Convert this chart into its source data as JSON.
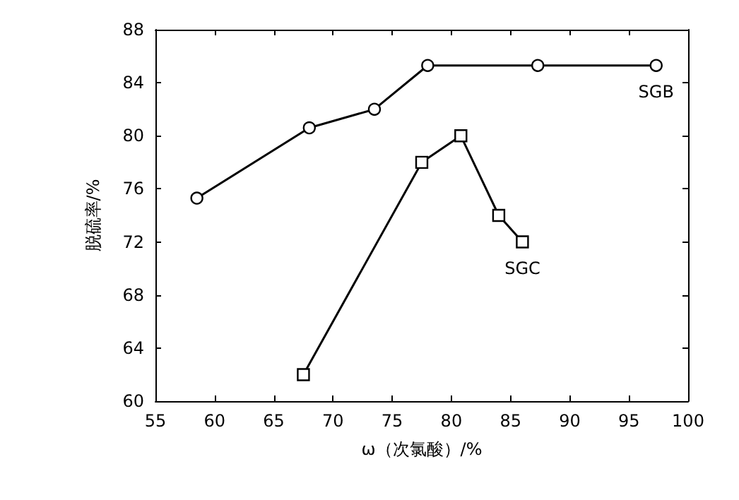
{
  "chart_data": {
    "type": "line",
    "xlabel": "ω（次氯酸）/%",
    "ylabel": "脱硫率/%",
    "xlim": [
      55,
      100
    ],
    "xticks": [
      55,
      60,
      65,
      70,
      75,
      80,
      85,
      90,
      95,
      100
    ],
    "ylim": [
      60,
      88
    ],
    "yticks": [
      60,
      64,
      68,
      72,
      76,
      80,
      84,
      88
    ],
    "grid": false,
    "line_style": "solid",
    "series": [
      {
        "name": "SGB",
        "color": "#000000",
        "marker": "circle",
        "x": [
          58.5,
          68,
          73.5,
          78,
          87.3,
          97.3
        ],
        "values": [
          75.3,
          80.6,
          82,
          85.3,
          85.3,
          85.3
        ]
      },
      {
        "name": "SGC",
        "color": "#000000",
        "marker": "square",
        "x": [
          67.5,
          77.5,
          80.8,
          84,
          86
        ],
        "values": [
          62,
          78,
          80,
          74,
          72
        ]
      }
    ]
  }
}
